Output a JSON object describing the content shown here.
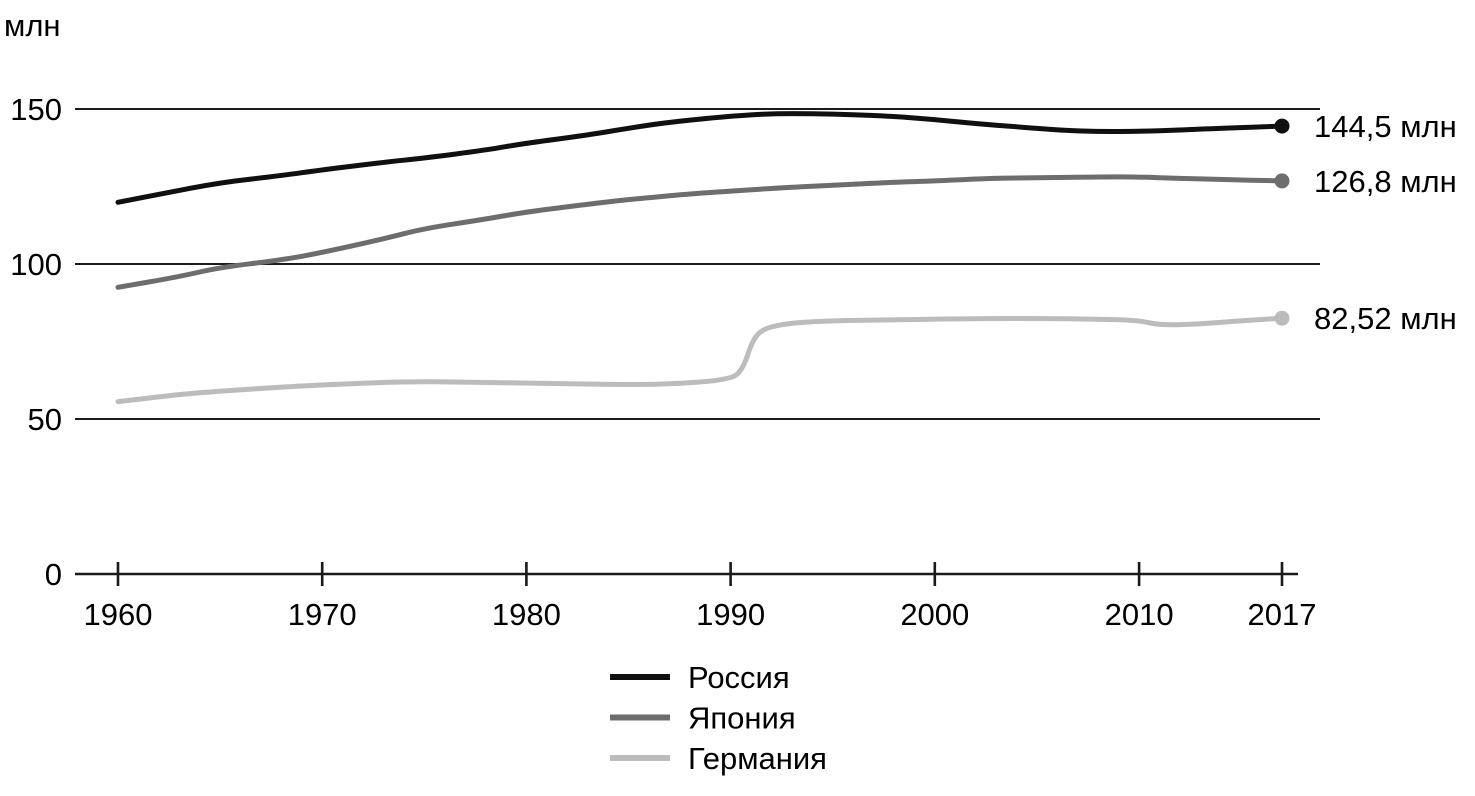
{
  "page": {
    "background": "#ffffff"
  },
  "chart_data": {
    "type": "line",
    "title": "",
    "ylabel": "млн",
    "xlabel": "",
    "x_range": [
      1960,
      2017
    ],
    "ylim": [
      0,
      150
    ],
    "yticks": [
      150,
      100,
      50,
      0
    ],
    "xticks": [
      1960,
      1970,
      1980,
      1990,
      2000,
      2010,
      2017
    ],
    "grid": "horizontal-only",
    "legend_position": "bottom-center",
    "axis_color": "#1a1a1a",
    "text_color": "#000000",
    "series": [
      {
        "key": "russia",
        "name": "Россия",
        "color": "#101010",
        "end_label": "144,5 млн",
        "points": [
          [
            1960,
            119.9
          ],
          [
            1962,
            122.5
          ],
          [
            1965,
            126.3
          ],
          [
            1968,
            128.5
          ],
          [
            1970,
            130.4
          ],
          [
            1973,
            132.8
          ],
          [
            1975,
            134.2
          ],
          [
            1978,
            136.7
          ],
          [
            1980,
            139.0
          ],
          [
            1983,
            141.6
          ],
          [
            1985,
            143.8
          ],
          [
            1987,
            145.8
          ],
          [
            1990,
            147.7
          ],
          [
            1992,
            148.5
          ],
          [
            1994,
            148.5
          ],
          [
            1996,
            148.2
          ],
          [
            1998,
            147.6
          ],
          [
            2000,
            146.6
          ],
          [
            2002,
            145.3
          ],
          [
            2004,
            144.3
          ],
          [
            2006,
            143.2
          ],
          [
            2008,
            142.7
          ],
          [
            2010,
            142.8
          ],
          [
            2012,
            143.2
          ],
          [
            2014,
            143.8
          ],
          [
            2017,
            144.5
          ]
        ]
      },
      {
        "key": "japan",
        "name": "Япония",
        "color": "#6d6d6d",
        "end_label": "126,8 млн",
        "points": [
          [
            1960,
            92.5
          ],
          [
            1963,
            95.9
          ],
          [
            1965,
            98.9
          ],
          [
            1968,
            101.3
          ],
          [
            1970,
            103.7
          ],
          [
            1973,
            108.1
          ],
          [
            1975,
            111.5
          ],
          [
            1978,
            114.5
          ],
          [
            1980,
            116.8
          ],
          [
            1983,
            119.3
          ],
          [
            1985,
            120.8
          ],
          [
            1988,
            122.6
          ],
          [
            1990,
            123.5
          ],
          [
            1993,
            124.8
          ],
          [
            1995,
            125.4
          ],
          [
            1998,
            126.4
          ],
          [
            2000,
            126.8
          ],
          [
            2003,
            127.7
          ],
          [
            2005,
            127.8
          ],
          [
            2008,
            128.1
          ],
          [
            2010,
            128.1
          ],
          [
            2012,
            127.6
          ],
          [
            2014,
            127.3
          ],
          [
            2017,
            126.8
          ]
        ]
      },
      {
        "key": "germany",
        "name": "Германия",
        "color": "#bcbcbc",
        "end_label": "82,52 млн",
        "points": [
          [
            1960,
            55.6
          ],
          [
            1963,
            57.9
          ],
          [
            1965,
            59.0
          ],
          [
            1968,
            60.3
          ],
          [
            1970,
            61.0
          ],
          [
            1974,
            62.1
          ],
          [
            1977,
            61.9
          ],
          [
            1980,
            61.6
          ],
          [
            1984,
            61.1
          ],
          [
            1987,
            61.2
          ],
          [
            1990,
            62.7
          ],
          [
            1990.6,
            66.0
          ],
          [
            1991.1,
            76.0
          ],
          [
            1991.7,
            79.5
          ],
          [
            1993,
            81.0
          ],
          [
            1995,
            81.7
          ],
          [
            1998,
            82.0
          ],
          [
            2000,
            82.2
          ],
          [
            2002,
            82.4
          ],
          [
            2005,
            82.5
          ],
          [
            2008,
            82.2
          ],
          [
            2010,
            81.8
          ],
          [
            2011,
            80.3
          ],
          [
            2013,
            80.6
          ],
          [
            2015,
            81.7
          ],
          [
            2017,
            82.52
          ]
        ]
      }
    ]
  }
}
